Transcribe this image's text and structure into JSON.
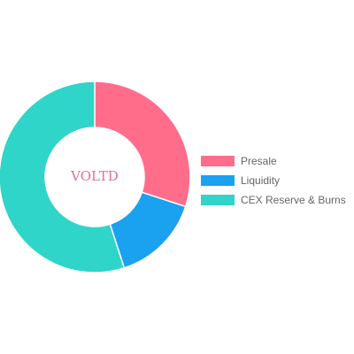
{
  "chart_data": {
    "type": "pie",
    "donut": true,
    "center_label": "VOLTD",
    "categories": [
      "Presale",
      "Liquidity",
      "CEX Reserve & Burns"
    ],
    "values": [
      30,
      15,
      55
    ],
    "colors": [
      "#ff6d8b",
      "#1aa1ef",
      "#2fd5c8"
    ],
    "legend_position": "right",
    "center_label_color": "#e0709a"
  }
}
